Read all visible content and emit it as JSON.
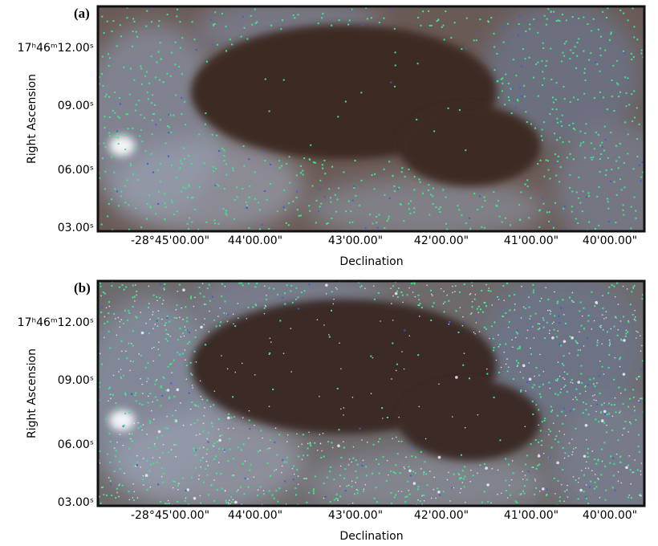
{
  "panels": [
    {
      "label": "(a)",
      "ylabel": "Right Ascension",
      "xlabel": "Declination",
      "yticks": [
        "17ʰ46ᵐ12.00ˢ",
        "09.00ˢ",
        "06.00ˢ",
        "03.00ˢ"
      ],
      "xticks": [
        "-28°45'00.00\"",
        "44'00.00\"",
        "43'00.00\"",
        "42'00.00\"",
        "41'00.00\"",
        "40'00.00\""
      ]
    },
    {
      "label": "(b)",
      "ylabel": "Right Ascension",
      "xlabel": "Declination",
      "yticks": [
        "17ʰ46ᵐ12.00ˢ",
        "09.00ˢ",
        "06.00ˢ",
        "03.00ˢ"
      ],
      "xticks": [
        "-28°45'00.00\"",
        "44'00.00\"",
        "43'00.00\"",
        "42'00.00\"",
        "41'00.00\"",
        "40'00.00\""
      ]
    }
  ]
}
